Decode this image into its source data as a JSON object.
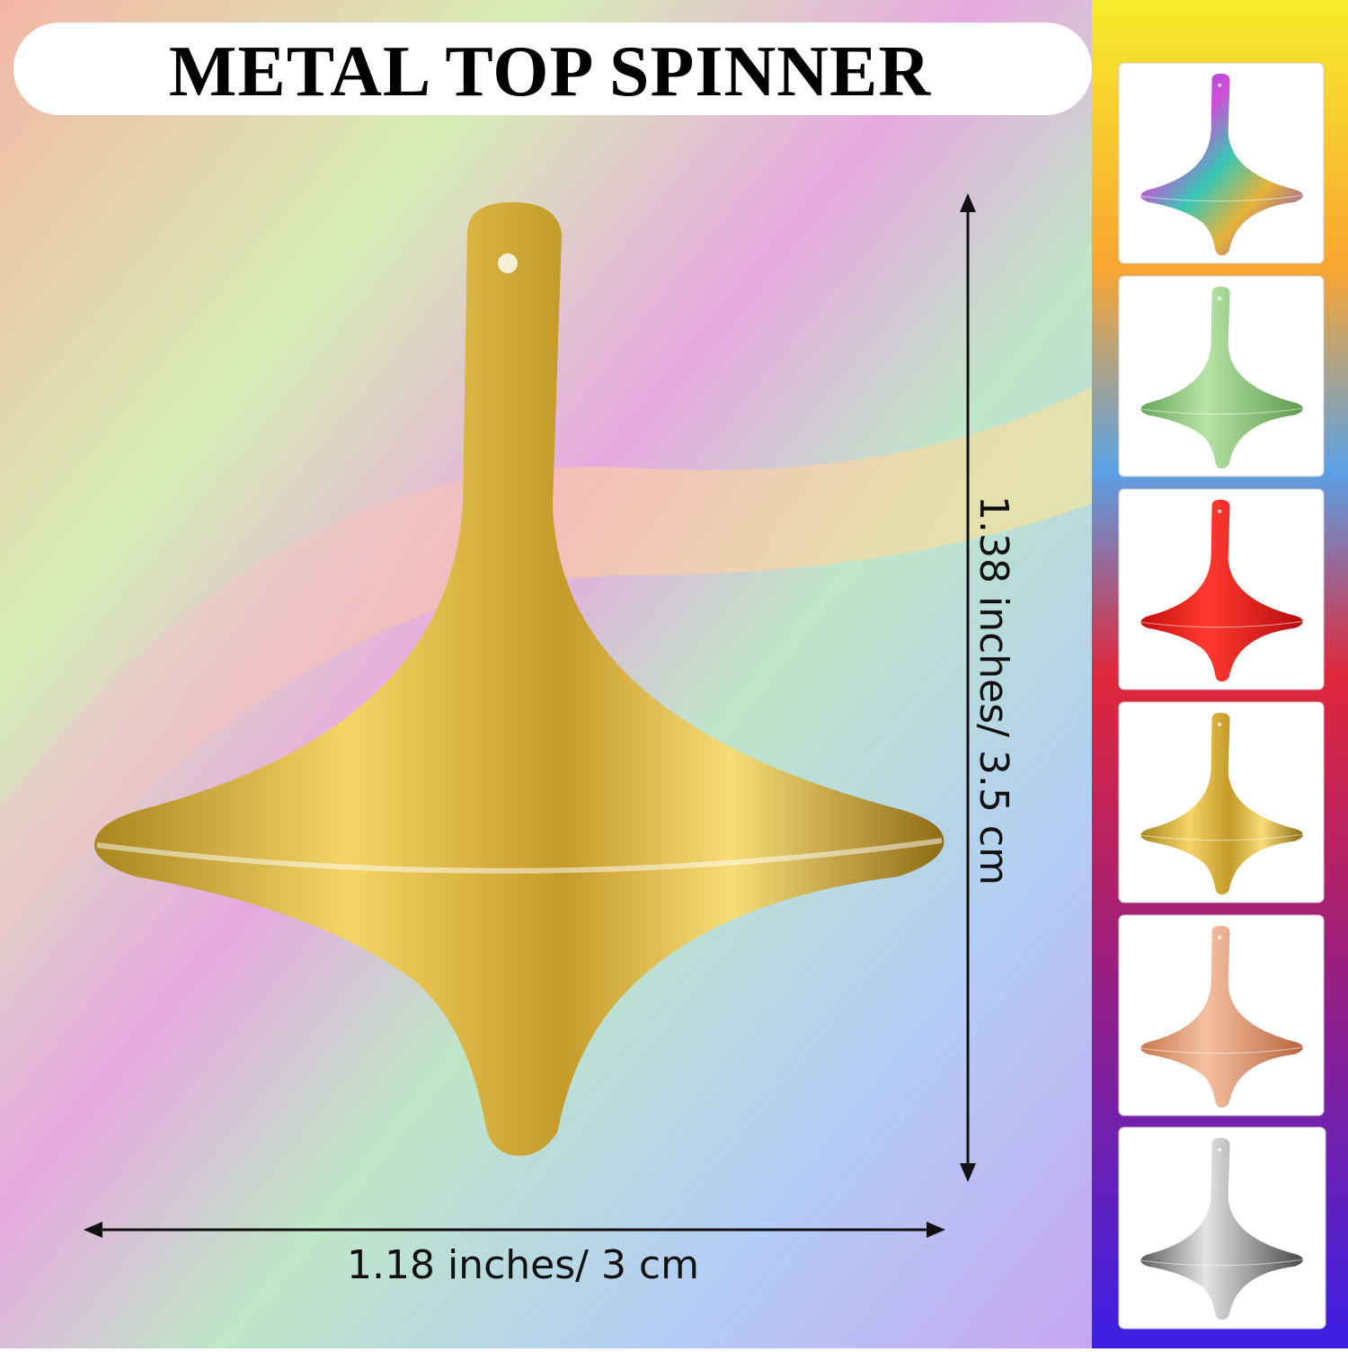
{
  "header": {
    "title": "METAL TOP SPINNER"
  },
  "dimensions": {
    "height_label": "1.38 inches/ 3.5 cm",
    "width_label": "1.18 inches/ 3 cm"
  }
}
